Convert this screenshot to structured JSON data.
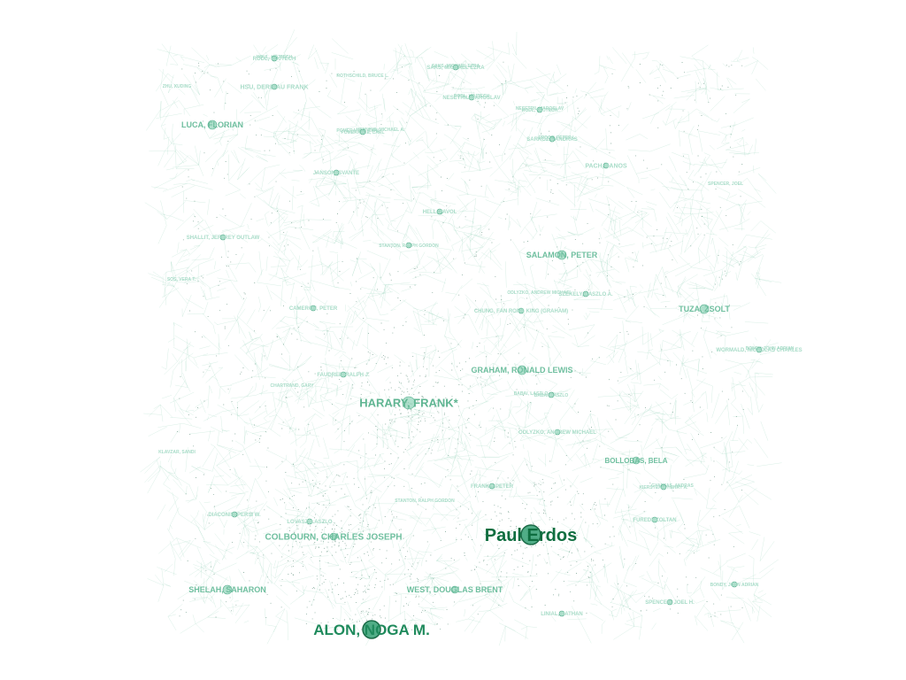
{
  "graph": {
    "colors": {
      "edge": "#6fc3a3",
      "node_fill": "#8fd3b8",
      "node_stroke": "#4aa886",
      "label_faint": "#a8dcc8",
      "label_mid": "#6fbf9f",
      "label_strong": "#1f8a5c",
      "label_darkest": "#0f6e40"
    },
    "nodes": [
      {
        "id": "erdos",
        "label": "Paul Erdos",
        "weight": 1.0
      },
      {
        "id": "alon",
        "label": "ALON, NOGA M.",
        "weight": 0.85
      },
      {
        "id": "harary",
        "label": "HARARY, FRANK*",
        "weight": 0.6
      },
      {
        "id": "colbourn",
        "label": "COLBOURN, CHARLES JOSEPH",
        "weight": 0.45
      },
      {
        "id": "salamon",
        "label": "SALAMON, PETER",
        "weight": 0.4
      },
      {
        "id": "tuza",
        "label": "TUZA, ZSOLT",
        "weight": 0.4
      },
      {
        "id": "graham",
        "label": "GRAHAM, RONALD LEWIS",
        "weight": 0.38
      },
      {
        "id": "shelah",
        "label": "SHELAH, SAHARON",
        "weight": 0.36
      },
      {
        "id": "west",
        "label": "WEST, DOUGLAS BRENT",
        "weight": 0.34
      },
      {
        "id": "luca",
        "label": "LUCA, FLORIAN",
        "weight": 0.32
      },
      {
        "id": "bollobas",
        "label": "BOLLOBAS, BELA",
        "weight": 0.3
      },
      {
        "id": "hsu",
        "label": "HSU, DERBIAU FRANK",
        "weight": 0.25
      },
      {
        "id": "pach",
        "label": "PACH, JANOS",
        "weight": 0.22
      },
      {
        "id": "hell",
        "label": "HELL, PAVOL",
        "weight": 0.2
      },
      {
        "id": "jansen",
        "label": "JANSON, SVANTE",
        "weight": 0.2
      },
      {
        "id": "diaconis",
        "label": "DIACONIS, PERSI W.",
        "weight": 0.2
      },
      {
        "id": "lovasz",
        "label": "LOVASZ, LASZLO",
        "weight": 0.2
      },
      {
        "id": "cameron",
        "label": "CAMERON, PETER",
        "weight": 0.2
      },
      {
        "id": "furedi",
        "label": "FUREDI, ZOLTAN",
        "weight": 0.18
      },
      {
        "id": "sarkozy",
        "label": "SARKOZY, ANDRAS",
        "weight": 0.18
      },
      {
        "id": "saks",
        "label": "SAKS, MICHAEL EZRA",
        "weight": 0.18
      },
      {
        "id": "rodl",
        "label": "RODL, VOJTECH",
        "weight": 0.16
      },
      {
        "id": "nesetril",
        "label": "NESETRIL, JAROSLAV",
        "weight": 0.16
      },
      {
        "id": "rodl2",
        "label": "RODL, VOJTECH",
        "weight": 0.16
      },
      {
        "id": "spencer",
        "label": "SPENCER, JOEL H.",
        "weight": 0.16
      },
      {
        "id": "faudree",
        "label": "FAUDREE, RALPH J.",
        "weight": 0.16
      },
      {
        "id": "chung",
        "label": "CHUNG, FAN RONG KING (GRAHAM)",
        "weight": 0.16
      },
      {
        "id": "szekely",
        "label": "SZEKELY, LASZLO A.",
        "weight": 0.16
      },
      {
        "id": "wormald",
        "label": "WORMALD, NICHOLAS CHARLES",
        "weight": 0.16
      },
      {
        "id": "linial",
        "label": "LINIAL, NATHAN",
        "weight": 0.16
      },
      {
        "id": "kierstead",
        "label": "KIERSTEAD, HENRY A.",
        "weight": 0.14
      },
      {
        "id": "frankl",
        "label": "FRANKL, PETER",
        "weight": 0.14
      },
      {
        "id": "shallit",
        "label": "SHALLIT, JEFFREY OUTLAW",
        "weight": 0.14
      },
      {
        "id": "oda",
        "label": "ODLYZKO, ANDREW MICHAEL",
        "weight": 0.14
      },
      {
        "id": "babai",
        "label": "BABAI, LASZLO",
        "weight": 0.12
      },
      {
        "id": "stanton",
        "label": "STANTON, RALPH GORDON",
        "weight": 0.12
      },
      {
        "id": "bondy",
        "label": "BONDY, JOHN ADRIAN",
        "weight": 0.12
      },
      {
        "id": "pomerance",
        "label": "POMERANCE, CARL",
        "weight": 0.12
      }
    ]
  },
  "field_labels": [
    "HOUL, VOJTECH",
    "SAKS, MICHAEL EZRA",
    "RODL, VOJTECH",
    "NESETRIL, JAROSLAV",
    "ODLYZKO, ANDREW MICHAEL",
    "ZHU, XUDING",
    "ROTHSCHILD, BRUCE L.",
    "STANTON, RALPH GORDON",
    "ERDOS, PETER L.",
    "HENNING, MICHAEL A.",
    "CHARTRAND, GARY",
    "KLAVZAR, SANDI",
    "BABAI, LASZLO",
    "BONDY, JOHN ADRIAN",
    "POMERANCE, CARL",
    "SPENCER, JOEL",
    "GYARFAS, ANDRAS",
    "SOS, VERA T."
  ]
}
